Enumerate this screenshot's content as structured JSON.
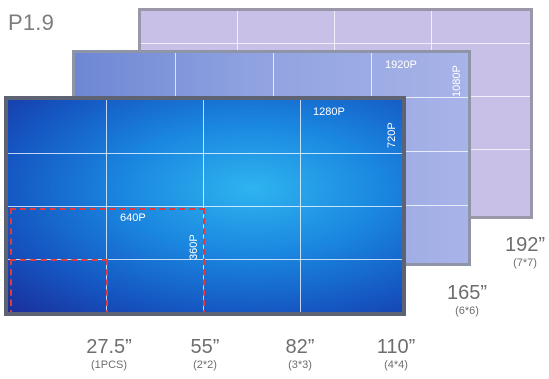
{
  "title": "P1.9",
  "panels": {
    "back": {
      "resolution_h": "1920P",
      "resolution_v": "1080P"
    },
    "mid": {
      "resolution_h": "1280P",
      "resolution_v": "720P"
    },
    "front": {
      "resolution_h": "640P",
      "resolution_v": "360P"
    }
  },
  "sizes": [
    {
      "main": "27.5”",
      "sub": "(1PCS)"
    },
    {
      "main": "55”",
      "sub": "(2*2)"
    },
    {
      "main": "82”",
      "sub": "(3*3)"
    },
    {
      "main": "110”",
      "sub": "(4*4)"
    },
    {
      "main": "165”",
      "sub": "(6*6)"
    },
    {
      "main": "192”",
      "sub": "(7*7)"
    }
  ],
  "colors": {
    "dash": "#e23b3b",
    "back_panel": "#c8c0e6",
    "front_panel_center": "#2fb4f0",
    "front_panel_edge": "#1a2f9a"
  }
}
